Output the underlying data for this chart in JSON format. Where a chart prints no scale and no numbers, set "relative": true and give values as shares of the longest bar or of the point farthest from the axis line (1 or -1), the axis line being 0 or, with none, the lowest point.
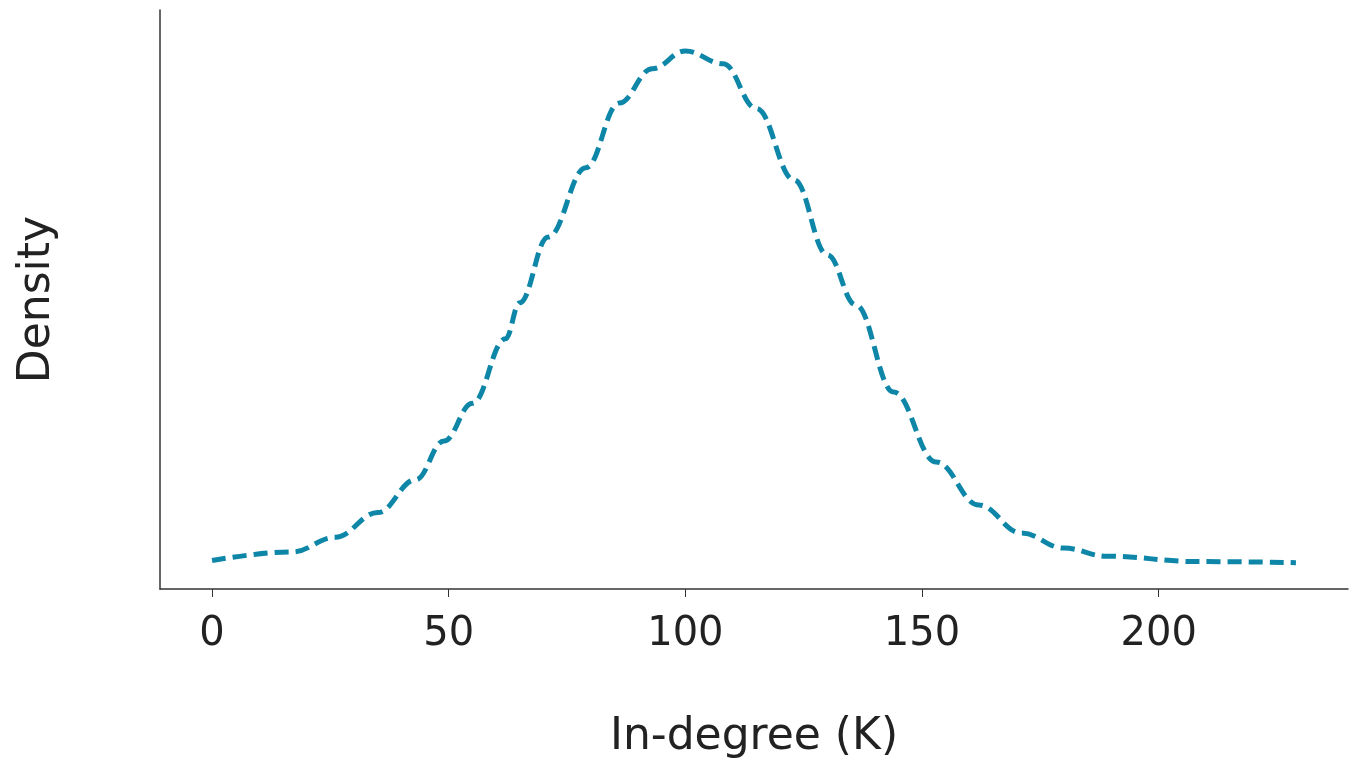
{
  "chart_data": {
    "type": "line",
    "xlabel": "In-degree (K)",
    "ylabel": "Density",
    "relative": true,
    "xlim": [
      -11,
      240
    ],
    "xticks": [
      0,
      50,
      100,
      150,
      200
    ],
    "grid": false,
    "marker": "none",
    "line_style": "dashed",
    "series": [
      {
        "color": "#0e86a8",
        "x": [
          0,
          17,
          26,
          35,
          43,
          49,
          55,
          62,
          65,
          71,
          79,
          86,
          93,
          100,
          108,
          115,
          123,
          130,
          136,
          144,
          153,
          162,
          171,
          180,
          189,
          208,
          229
        ],
        "values": [
          0.053,
          0.069,
          0.096,
          0.142,
          0.203,
          0.275,
          0.345,
          0.465,
          0.532,
          0.654,
          0.783,
          0.903,
          0.967,
          1,
          0.976,
          0.893,
          0.76,
          0.621,
          0.528,
          0.366,
          0.236,
          0.156,
          0.104,
          0.076,
          0.061,
          0.051,
          0.049
        ]
      }
    ]
  }
}
